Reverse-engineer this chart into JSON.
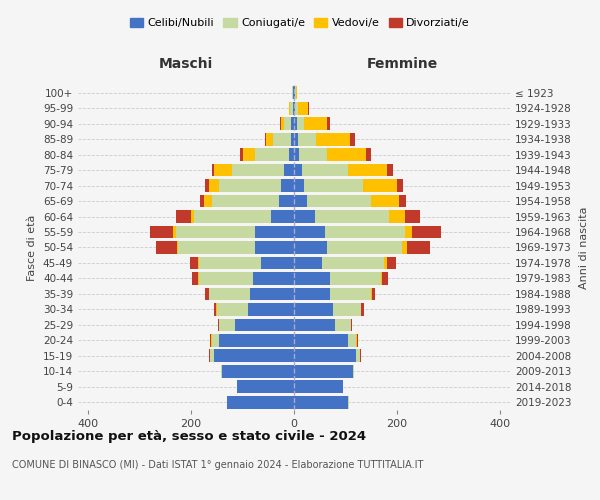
{
  "age_groups": [
    "0-4",
    "5-9",
    "10-14",
    "15-19",
    "20-24",
    "25-29",
    "30-34",
    "35-39",
    "40-44",
    "45-49",
    "50-54",
    "55-59",
    "60-64",
    "65-69",
    "70-74",
    "75-79",
    "80-84",
    "85-89",
    "90-94",
    "95-99",
    "100+"
  ],
  "birth_years": [
    "2019-2023",
    "2014-2018",
    "2009-2013",
    "2004-2008",
    "1999-2003",
    "1994-1998",
    "1989-1993",
    "1984-1988",
    "1979-1983",
    "1974-1978",
    "1969-1973",
    "1964-1968",
    "1959-1963",
    "1954-1958",
    "1949-1953",
    "1944-1948",
    "1939-1943",
    "1934-1938",
    "1929-1933",
    "1924-1928",
    "≤ 1923"
  ],
  "maschi": {
    "celibi": [
      130,
      110,
      140,
      155,
      145,
      115,
      90,
      85,
      80,
      65,
      75,
      75,
      45,
      30,
      25,
      20,
      10,
      5,
      5,
      2,
      2
    ],
    "coniugati": [
      1,
      1,
      2,
      8,
      15,
      30,
      60,
      80,
      105,
      120,
      150,
      155,
      150,
      130,
      120,
      100,
      65,
      35,
      15,
      5,
      2
    ],
    "vedovi": [
      0,
      0,
      0,
      1,
      2,
      1,
      1,
      1,
      1,
      2,
      3,
      5,
      5,
      15,
      20,
      35,
      25,
      15,
      5,
      2,
      0
    ],
    "divorziati": [
      0,
      0,
      0,
      1,
      2,
      2,
      5,
      8,
      12,
      15,
      40,
      45,
      30,
      8,
      8,
      5,
      5,
      2,
      2,
      0,
      0
    ]
  },
  "femmine": {
    "nubili": [
      105,
      95,
      115,
      120,
      105,
      80,
      75,
      70,
      70,
      55,
      65,
      60,
      40,
      25,
      20,
      15,
      10,
      8,
      5,
      2,
      2
    ],
    "coniugate": [
      1,
      1,
      2,
      8,
      15,
      30,
      55,
      80,
      100,
      120,
      145,
      155,
      145,
      125,
      115,
      90,
      55,
      35,
      15,
      5,
      2
    ],
    "vedove": [
      0,
      0,
      0,
      1,
      2,
      1,
      1,
      2,
      2,
      5,
      10,
      15,
      30,
      55,
      65,
      75,
      75,
      65,
      45,
      20,
      2
    ],
    "divorziate": [
      0,
      0,
      0,
      1,
      2,
      2,
      5,
      5,
      10,
      18,
      45,
      55,
      30,
      12,
      12,
      12,
      10,
      10,
      5,
      2,
      0
    ]
  },
  "colors": {
    "celibi_nubili": "#4472c4",
    "coniugati": "#c5d9a0",
    "vedovi": "#ffc000",
    "divorziati": "#c0392b"
  },
  "title": "Popolazione per età, sesso e stato civile - 2024",
  "subtitle": "COMUNE DI BINASCO (MI) - Dati ISTAT 1° gennaio 2024 - Elaborazione TUTTITALIA.IT",
  "xlabel_left": "Maschi",
  "xlabel_right": "Femmine",
  "ylabel_left": "Fasce di età",
  "ylabel_right": "Anni di nascita",
  "xlim": 420,
  "background_color": "#f5f5f5",
  "grid_color": "#cccccc"
}
